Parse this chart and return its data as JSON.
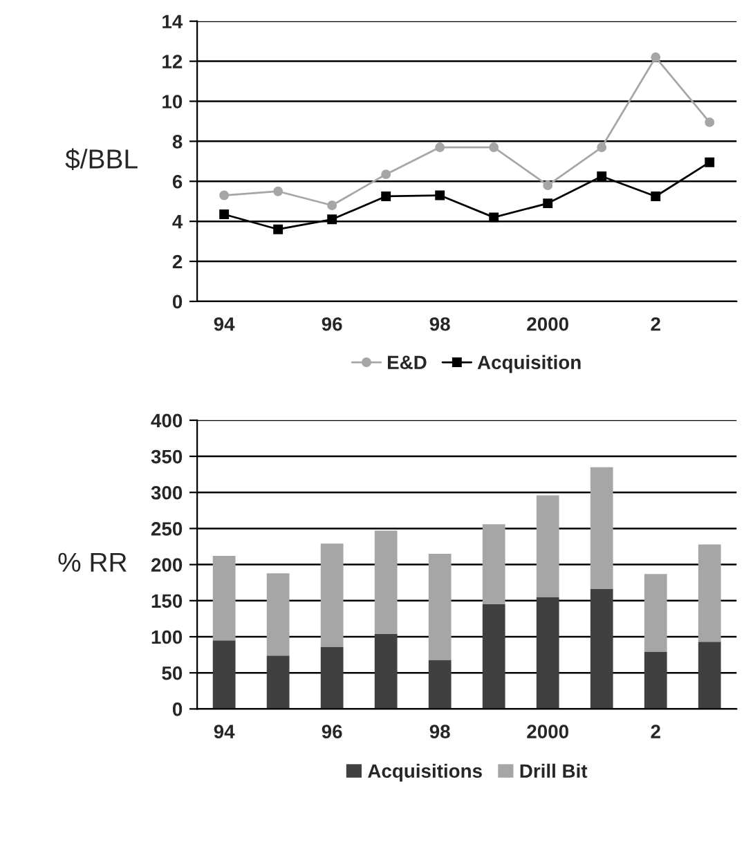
{
  "chart_data": [
    {
      "type": "line",
      "ylabel": "$/BBL",
      "categories": [
        "94",
        null,
        "96",
        null,
        "98",
        null,
        "2000",
        null,
        "2",
        null
      ],
      "series": [
        {
          "name": "E&D",
          "color": "#a6a6a6",
          "marker": "circle",
          "values": [
            5.3,
            5.5,
            4.8,
            6.35,
            7.7,
            7.7,
            5.8,
            7.7,
            12.2,
            8.95
          ]
        },
        {
          "name": "Acquisition",
          "color": "#000000",
          "marker": "square",
          "values": [
            4.35,
            3.6,
            4.1,
            5.25,
            5.3,
            4.2,
            4.9,
            6.25,
            5.25,
            6.95
          ]
        }
      ],
      "ylim": [
        0,
        14
      ],
      "yticks": [
        0,
        2,
        4,
        6,
        8,
        10,
        12,
        14
      ],
      "grid": "y",
      "legend": "bottom"
    },
    {
      "type": "bar",
      "stacked": true,
      "ylabel": "% RR",
      "categories": [
        "94",
        null,
        "96",
        null,
        "98",
        null,
        "2000",
        null,
        "2",
        null
      ],
      "series": [
        {
          "name": "Acquisitions",
          "color": "#404040",
          "values": [
            95,
            74,
            86,
            104,
            68,
            145,
            155,
            166,
            79,
            93
          ]
        },
        {
          "name": "Drill Bit",
          "color": "#a6a6a6",
          "values": [
            117,
            114,
            143,
            143,
            147,
            111,
            141,
            169,
            108,
            135
          ]
        }
      ],
      "ylim": [
        0,
        400
      ],
      "yticks": [
        0,
        50,
        100,
        150,
        200,
        250,
        300,
        350,
        400
      ],
      "grid": "y",
      "legend": "bottom"
    }
  ]
}
